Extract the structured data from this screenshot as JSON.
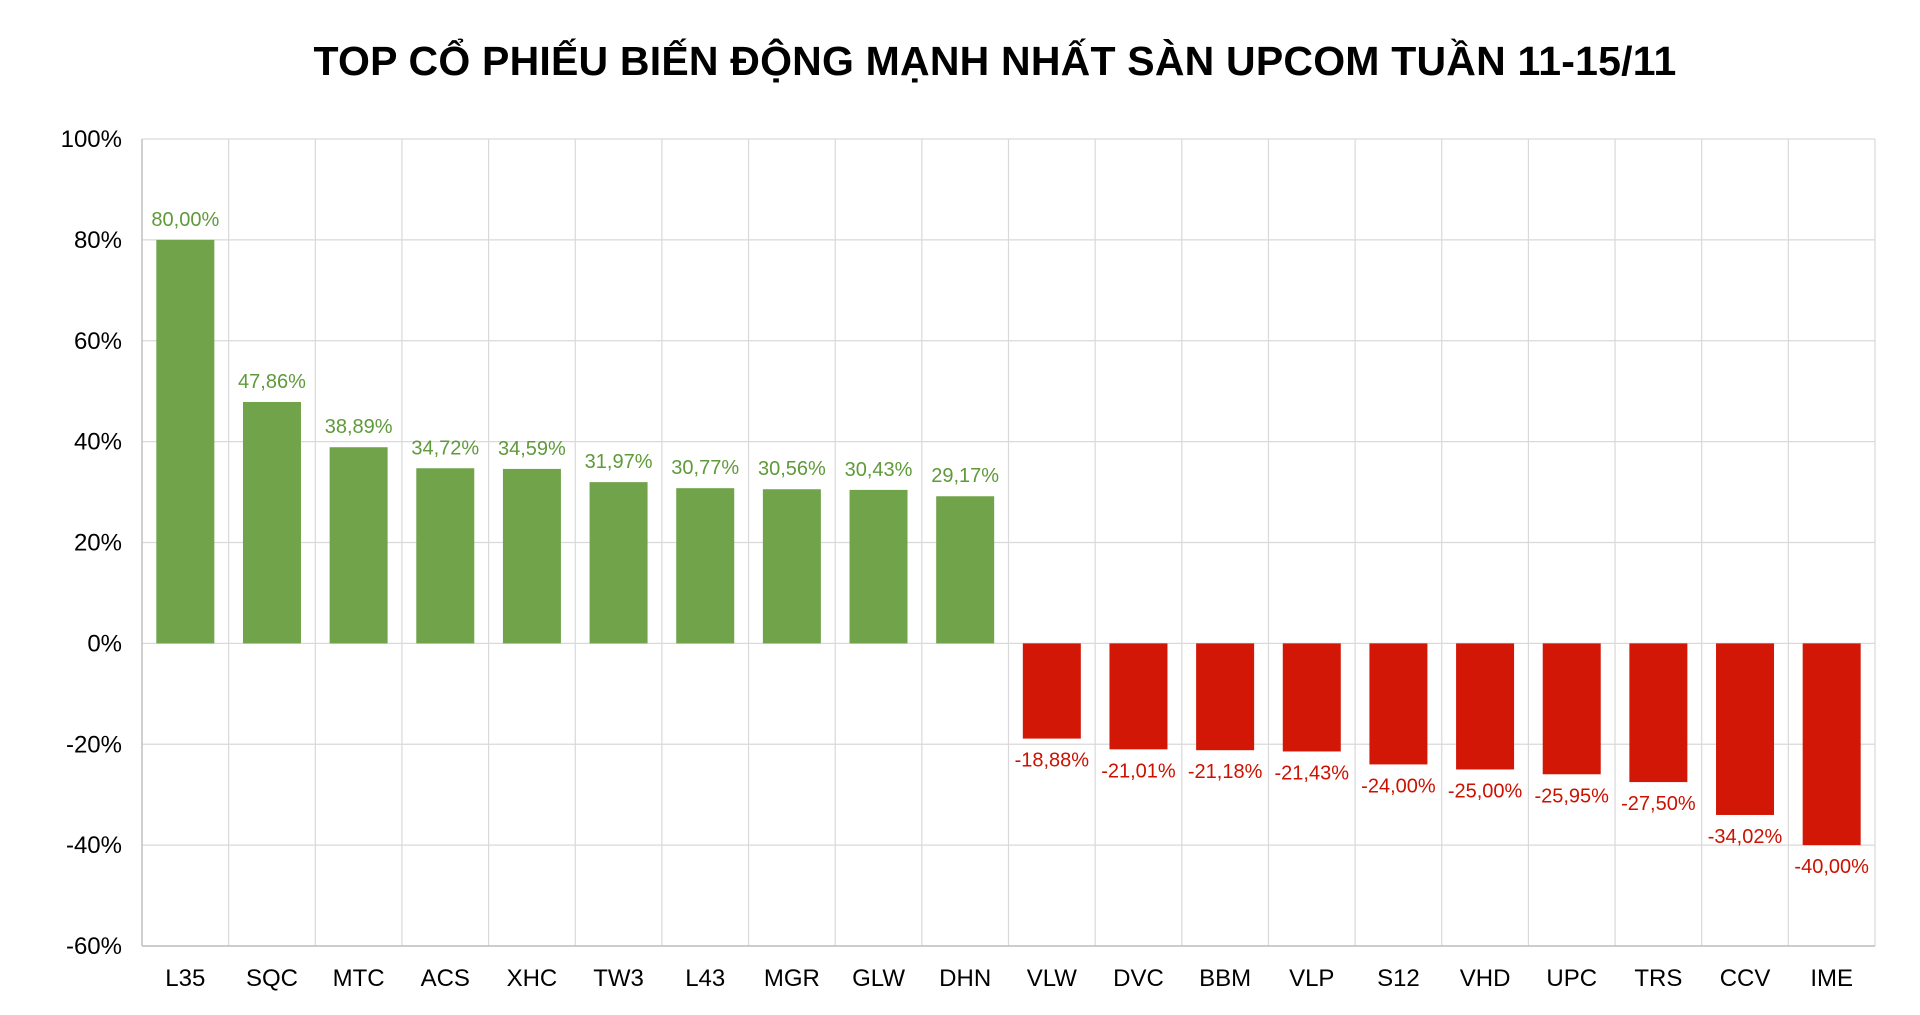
{
  "chart_data": {
    "type": "bar",
    "title": "TOP CỔ PHIẾU BIẾN ĐỘNG MẠNH NHẤT SÀN UPCOM TUẦN 11-15/11",
    "xlabel": "",
    "ylabel": "",
    "ylim": [
      -60,
      100
    ],
    "yticks": [
      100,
      80,
      60,
      40,
      20,
      0,
      -20,
      -40,
      -60
    ],
    "ytick_labels": [
      "100%",
      "80%",
      "60%",
      "40%",
      "20%",
      "0%",
      "-20%",
      "-40%",
      "-60%"
    ],
    "grid": true,
    "legend": "none",
    "categories": [
      "L35",
      "SQC",
      "MTC",
      "ACS",
      "XHC",
      "TW3",
      "L43",
      "MGR",
      "GLW",
      "DHN",
      "VLW",
      "DVC",
      "BBM",
      "VLP",
      "S12",
      "VHD",
      "UPC",
      "TRS",
      "CCV",
      "IME"
    ],
    "values": [
      80.0,
      47.86,
      38.89,
      34.72,
      34.59,
      31.97,
      30.77,
      30.56,
      30.43,
      29.17,
      -18.88,
      -21.01,
      -21.18,
      -21.43,
      -24.0,
      -25.0,
      -25.95,
      -27.5,
      -34.02,
      -40.0
    ],
    "value_labels": [
      "80,00%",
      "47,86%",
      "38,89%",
      "34,72%",
      "34,59%",
      "31,97%",
      "30,77%",
      "30,56%",
      "30,43%",
      "29,17%",
      "-18,88%",
      "-21,01%",
      "-21,18%",
      "-21,43%",
      "-24,00%",
      "-25,00%",
      "-25,95%",
      "-27,50%",
      "-34,02%",
      "-40,00%"
    ],
    "colors": {
      "positive_bar": "#70a34a",
      "negative_bar": "#d21707",
      "positive_label": "#5f9a3a",
      "negative_label": "#cc1100",
      "grid": "#d9d9d9",
      "axis": "#bfbfbf"
    }
  }
}
